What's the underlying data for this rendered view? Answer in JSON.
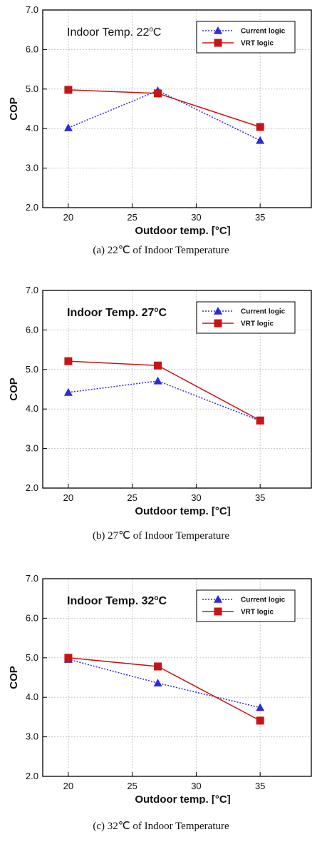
{
  "chart_data": [
    {
      "type": "line",
      "title": "Indoor Temp. 22°C",
      "title_parts": {
        "prefix": "Indoor Temp. 22",
        "superscript": "o",
        "suffix": "C"
      },
      "caption": "(a)  22℃  of  Indoor  Temperature",
      "xlabel": "Outdoor temp. [°C]",
      "ylabel": "COP",
      "xlim": [
        18,
        39
      ],
      "ylim": [
        2.0,
        7.0
      ],
      "xticks": [
        20,
        25,
        30,
        35
      ],
      "yticks": [
        "2.0",
        "3.0",
        "4.0",
        "5.0",
        "6.0",
        "7.0"
      ],
      "grid": true,
      "legend_position": "top-right",
      "series": [
        {
          "name": "Current logic",
          "x": [
            20,
            27,
            35
          ],
          "values": [
            4.02,
            4.96,
            3.7
          ],
          "color": "#2b2bd9",
          "marker": "triangle",
          "style": "dotted"
        },
        {
          "name": "VRT logic",
          "x": [
            20,
            27,
            35
          ],
          "values": [
            4.98,
            4.89,
            4.04
          ],
          "color": "#c81414",
          "marker": "square",
          "style": "solid"
        }
      ]
    },
    {
      "type": "line",
      "title": "Indoor Temp. 27°C",
      "title_parts": {
        "prefix": "Indoor Temp. 27",
        "superscript": "o",
        "suffix": "C"
      },
      "caption": "(b)  27℃  of  Indoor  Temperature",
      "xlabel": "Outdoor temp. [°C]",
      "ylabel": "COP",
      "xlim": [
        18,
        39
      ],
      "ylim": [
        2.0,
        7.0
      ],
      "xticks": [
        20,
        25,
        30,
        35
      ],
      "yticks": [
        "2.0",
        "3.0",
        "4.0",
        "5.0",
        "6.0",
        "7.0"
      ],
      "grid": true,
      "legend_position": "top-right",
      "series": [
        {
          "name": "Current logic",
          "x": [
            20,
            27,
            35
          ],
          "values": [
            4.42,
            4.71,
            3.7
          ],
          "color": "#2b2bd9",
          "marker": "triangle",
          "style": "dotted"
        },
        {
          "name": "VRT logic",
          "x": [
            20,
            27,
            35
          ],
          "values": [
            5.21,
            5.1,
            3.71
          ],
          "color": "#c81414",
          "marker": "square",
          "style": "solid"
        }
      ]
    },
    {
      "type": "line",
      "title": "Indoor Temp. 32°C",
      "title_parts": {
        "prefix": "Indoor Temp. 32",
        "superscript": "o",
        "suffix": "C"
      },
      "caption": "(c)  32℃  of  Indoor  Temperature",
      "xlabel": "Outdoor temp. [°C]",
      "ylabel": "COP",
      "xlim": [
        18,
        39
      ],
      "ylim": [
        2.0,
        7.0
      ],
      "xticks": [
        20,
        25,
        30,
        35
      ],
      "yticks": [
        "2.0",
        "3.0",
        "4.0",
        "5.0",
        "6.0",
        "7.0"
      ],
      "grid": true,
      "legend_position": "top-right",
      "series": [
        {
          "name": "Current logic",
          "x": [
            20,
            27,
            35
          ],
          "values": [
            4.96,
            4.36,
            3.74
          ],
          "color": "#2b2bd9",
          "marker": "triangle",
          "style": "dotted"
        },
        {
          "name": "VRT logic",
          "x": [
            20,
            27,
            35
          ],
          "values": [
            5.0,
            4.78,
            3.41
          ],
          "color": "#c81414",
          "marker": "square",
          "style": "solid"
        }
      ]
    }
  ]
}
